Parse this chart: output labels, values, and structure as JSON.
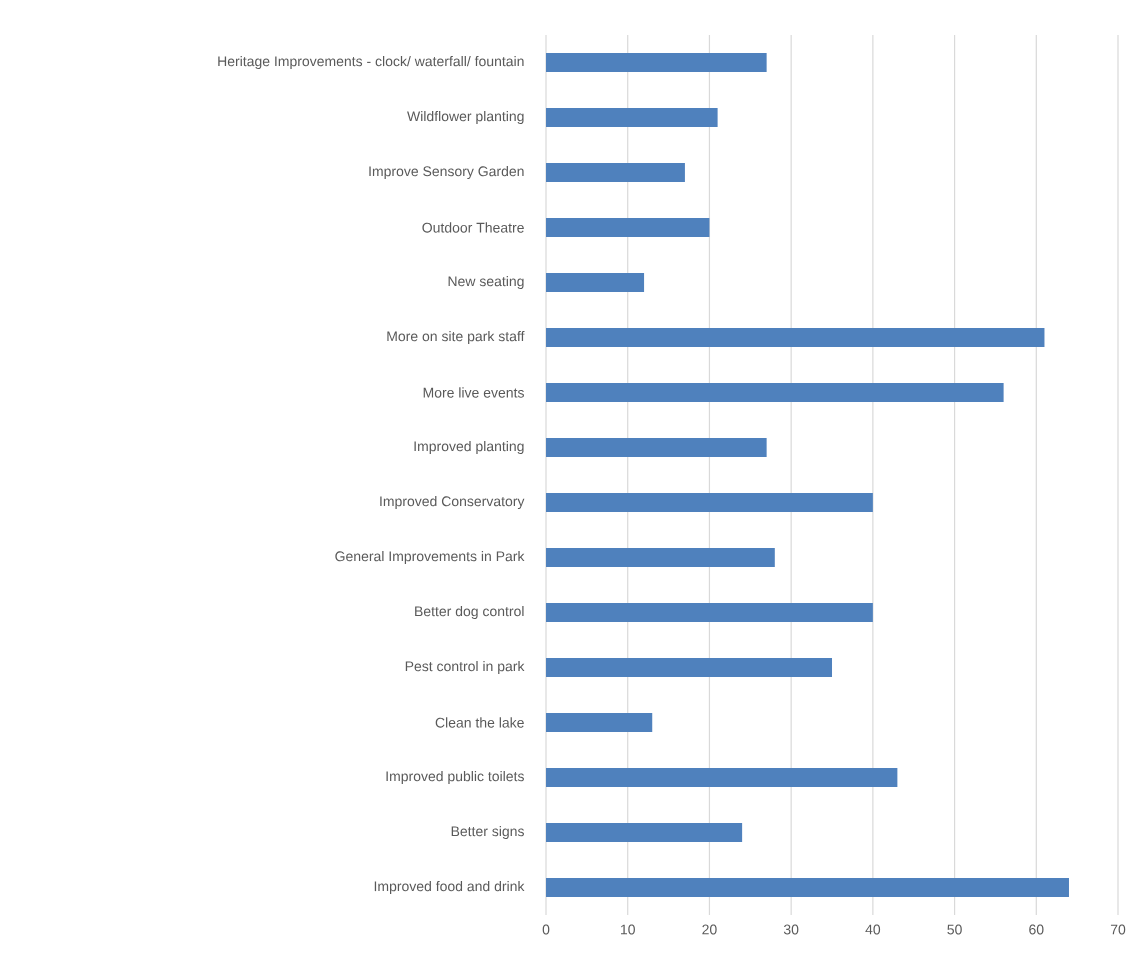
{
  "chart_data": {
    "type": "bar",
    "orientation": "horizontal",
    "categories": [
      "Heritage Improvements - clock/ waterfall/ fountain",
      "Wildflower planting",
      "Improve Sensory Garden",
      "Outdoor Theatre",
      "New seating",
      "More on site park staff",
      "More live events",
      "Improved planting",
      "Improved Conservatory",
      "General Improvements in Park",
      "Better dog control",
      "Pest control in park",
      "Clean the lake",
      "Improved public toilets",
      "Better signs",
      "Improved food and drink"
    ],
    "values": [
      27,
      21,
      17,
      20,
      12,
      61,
      56,
      27,
      40,
      28,
      40,
      35,
      13,
      43,
      24,
      64
    ],
    "color": "#4f81bd",
    "xlim": [
      0,
      70
    ],
    "xticks": [
      0,
      10,
      20,
      30,
      40,
      50,
      60,
      70
    ],
    "grid": "x"
  }
}
